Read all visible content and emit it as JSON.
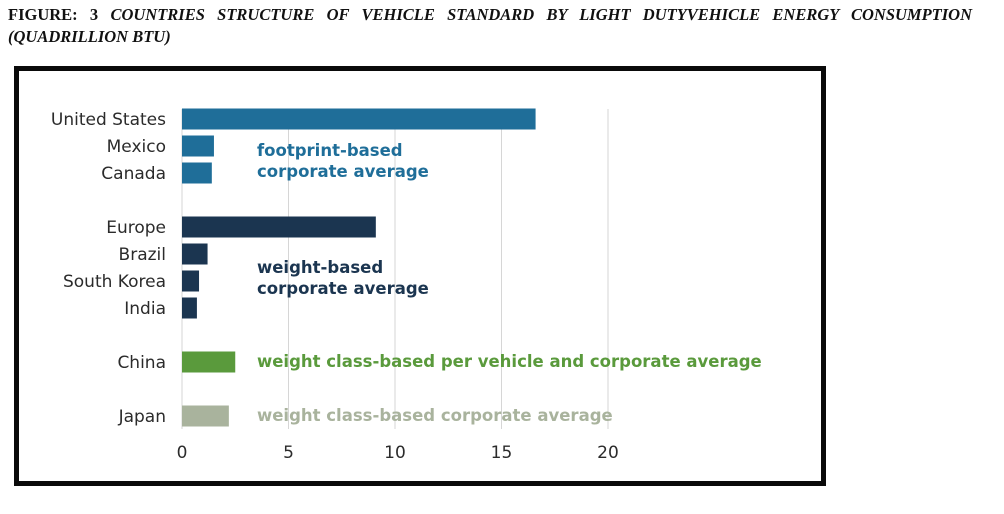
{
  "caption": {
    "label": "FIGURE: 3",
    "text": "COUNTRIES STRUCTURE OF VEHICLE STANDARD BY LIGHT DUTYVEHICLE ENERGY CONSUMPTION (QUADRILLION BTU)"
  },
  "colors": {
    "footprint": "#1f6e99",
    "weight": "#1b3550",
    "china": "#5a9a3c",
    "japan": "#a9b39d",
    "grid": "#d6d6d6"
  },
  "chart_data": {
    "type": "bar",
    "orientation": "horizontal",
    "categories": [
      "United States",
      "Mexico",
      "Canada",
      "Europe",
      "Brazil",
      "South Korea",
      "India",
      "China",
      "Japan"
    ],
    "values": [
      16.6,
      1.5,
      1.4,
      9.1,
      1.2,
      0.8,
      0.7,
      2.5,
      2.2
    ],
    "groups": [
      {
        "label_lines": [
          "footprint-based",
          "corporate average"
        ],
        "members": [
          0,
          1,
          2
        ],
        "color_key": "footprint"
      },
      {
        "label_lines": [
          "weight-based",
          "corporate average"
        ],
        "members": [
          3,
          4,
          5,
          6
        ],
        "color_key": "weight"
      },
      {
        "label_lines": [
          "weight class-based per vehicle and corporate average"
        ],
        "members": [
          7
        ],
        "color_key": "china"
      },
      {
        "label_lines": [
          "weight class-based corporate average"
        ],
        "members": [
          8
        ],
        "color_key": "japan"
      }
    ],
    "x_ticks": [
      0,
      5,
      10,
      15,
      20
    ],
    "xlim": [
      0,
      20
    ],
    "grid": "vertical",
    "title": "",
    "xlabel": "",
    "ylabel": ""
  }
}
